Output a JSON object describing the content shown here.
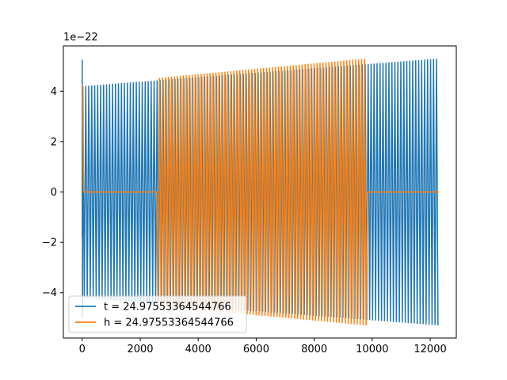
{
  "chart_data": {
    "type": "line",
    "title": "",
    "xlabel": "",
    "ylabel": "",
    "xlim": [
      -650,
      12900
    ],
    "ylim": [
      -5.8,
      5.8
    ],
    "x_ticks": [
      0,
      2000,
      4000,
      6000,
      8000,
      10000,
      12000
    ],
    "x_tick_labels": [
      "0",
      "2000",
      "4000",
      "6000",
      "8000",
      "10000",
      "12000"
    ],
    "y_ticks": [
      -4,
      -2,
      0,
      2,
      4
    ],
    "y_tick_labels": [
      "−4",
      "−2",
      "0",
      "2",
      "4"
    ],
    "y_offset_label": "1e−22",
    "grid": false,
    "legend_position": "lower-left",
    "series": [
      {
        "name": "t = 24.97553364544766",
        "color": "#1f77b4",
        "description": "oscillating signal with amplitude growing from about 4.2e-22 to 5.3e-22 over x from 0 to 12300",
        "x_start": 0,
        "x_end": 12300,
        "amplitude_start": 4.2,
        "amplitude_end": 5.3,
        "spike_at_start": 5.25,
        "cycles": 120
      },
      {
        "name": "h = 24.97553364544766",
        "color": "#ff7f0e",
        "description": "oscillating signal with amplitude growing from about 4.25e-22 to 5.3e-22 over x from 0 to 9800, flat at 0 from 50 to 2600 and from 9800 to 12300",
        "x_start": 0,
        "x_end": 12300,
        "active_ranges": [
          [
            0,
            50
          ],
          [
            2600,
            9800
          ]
        ],
        "flat_ranges": [
          [
            50,
            2600
          ],
          [
            9800,
            12300
          ]
        ],
        "amplitude_start": 4.25,
        "amplitude_end": 5.3,
        "cycles": 120
      }
    ]
  }
}
